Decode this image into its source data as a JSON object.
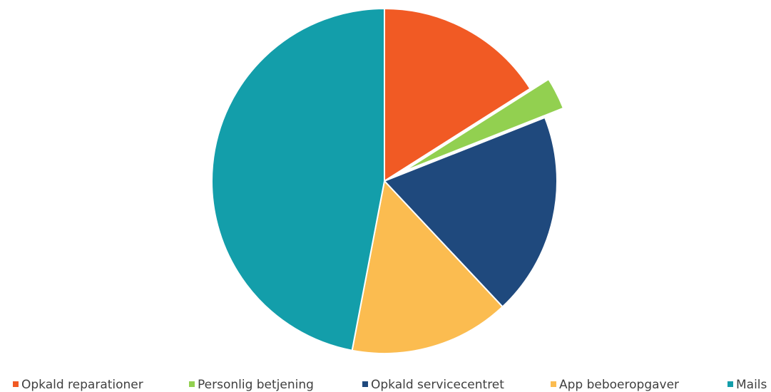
{
  "chart_data": {
    "type": "pie",
    "categories": [
      "Opkald reparationer",
      "Personlig betjening",
      "Opkald servicecentret",
      "App beboeropgaver",
      "Mails"
    ],
    "values": [
      16,
      3,
      19,
      15,
      47
    ],
    "colors": [
      "#f15a24",
      "#92d050",
      "#1f497d",
      "#fbbc50",
      "#139eaa"
    ],
    "explode": [
      0,
      0.12,
      0,
      0,
      0
    ],
    "legend": "bottom"
  }
}
